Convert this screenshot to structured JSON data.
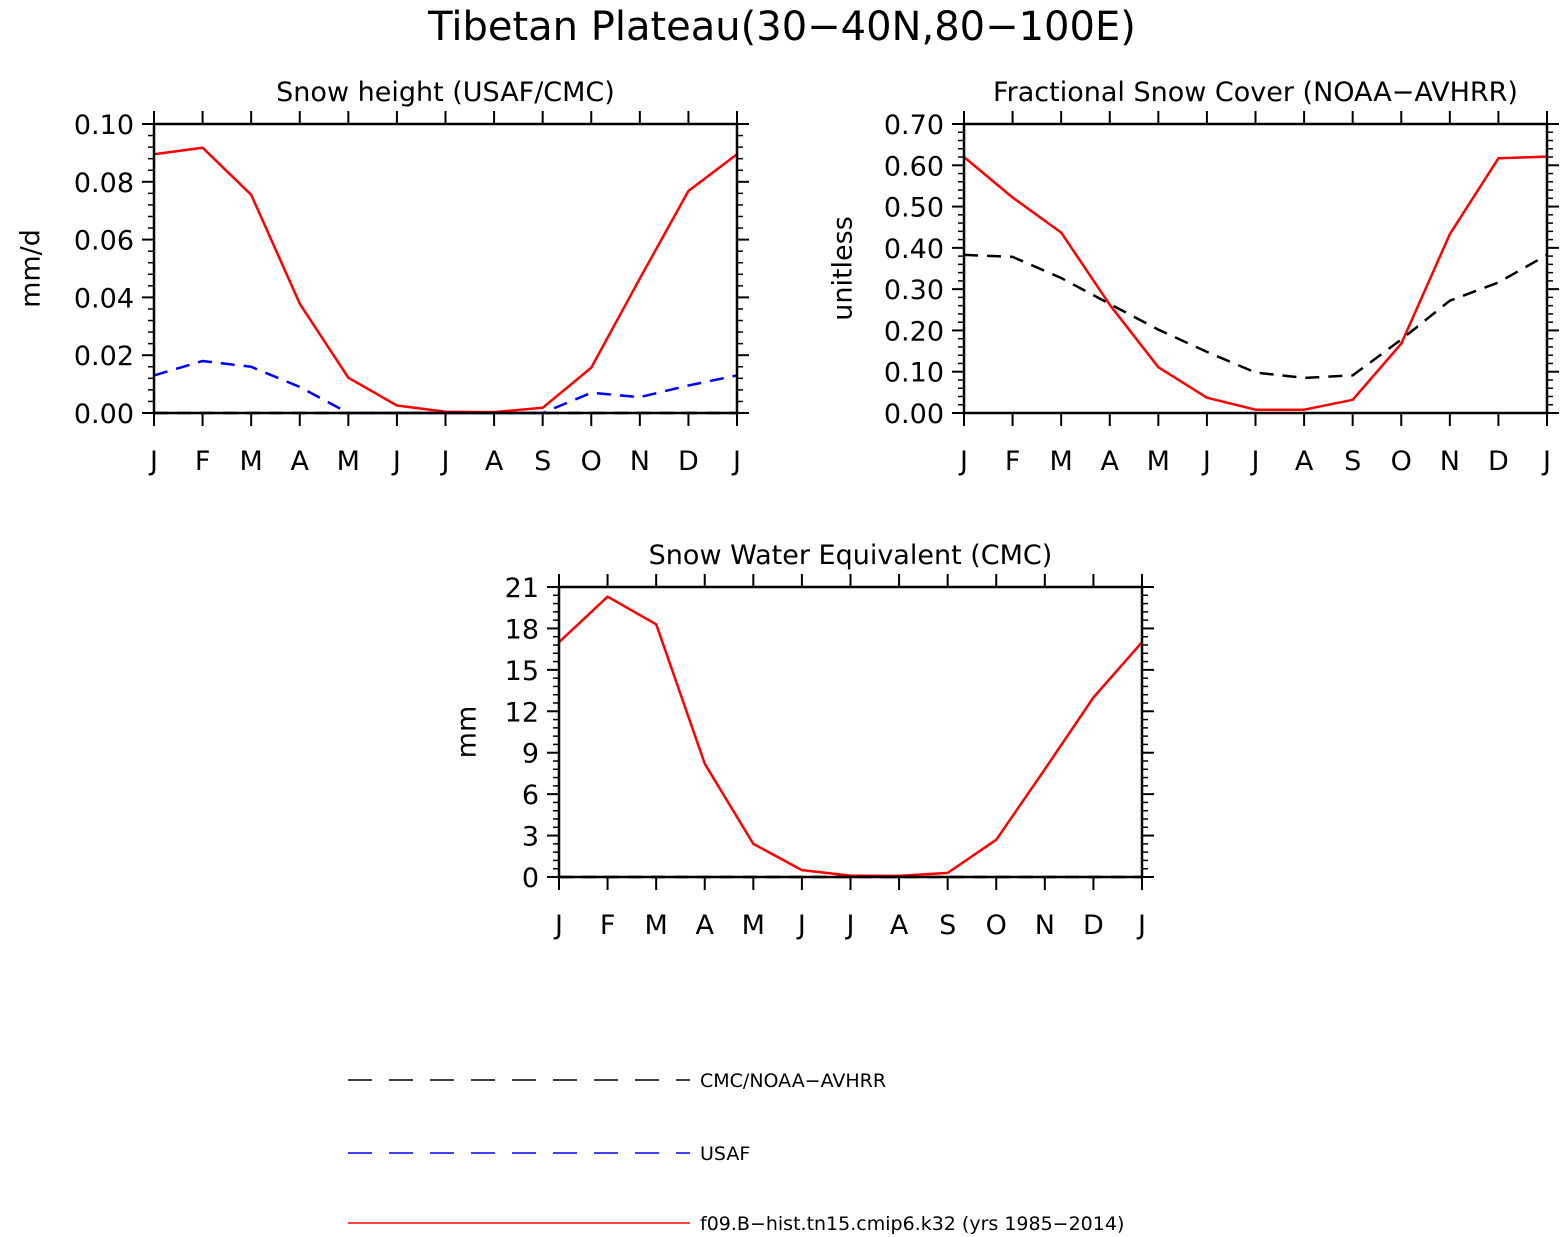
{
  "figure": {
    "title": "Tibetan Plateau(30−40N,80−100E)"
  },
  "chart_data": [
    {
      "type": "line",
      "title": "Snow height (USAF/CMC)",
      "xlabel": "",
      "ylabel": "mm/d",
      "categories": [
        "J",
        "F",
        "M",
        "A",
        "M",
        "J",
        "J",
        "A",
        "S",
        "O",
        "N",
        "D",
        "J"
      ],
      "ylim": [
        0,
        0.1
      ],
      "yticks": [
        "0.00",
        "0.02",
        "0.04",
        "0.06",
        "0.08",
        "0.10"
      ],
      "series": [
        {
          "name": "f09.B−hist.tn15.cmip6.k32 (yrs 1985−2014)",
          "color": "#ff0000",
          "dash": "solid",
          "values": [
            0.0895,
            0.0918,
            0.0755,
            0.0378,
            0.0122,
            0.0026,
            0.0004,
            0.0003,
            0.0018,
            0.0157,
            0.0465,
            0.0768,
            0.0895
          ]
        },
        {
          "name": "USAF",
          "color": "#0000ff",
          "dash": "dashed",
          "values": [
            0.013,
            0.018,
            0.016,
            0.009,
            0.0,
            0.0,
            0.0,
            0.0,
            0.0,
            0.007,
            0.0055,
            0.0095,
            0.013
          ]
        },
        {
          "name": "CMC/NOAA−AVHRR",
          "color": "#000000",
          "dash": "dashed",
          "values": [
            0,
            0,
            0,
            0,
            0,
            0,
            0,
            0,
            0,
            0,
            0,
            0,
            0
          ]
        }
      ]
    },
    {
      "type": "line",
      "title": "Fractional Snow Cover (NOAA−AVHRR)",
      "xlabel": "",
      "ylabel": "unitless",
      "categories": [
        "J",
        "F",
        "M",
        "A",
        "M",
        "J",
        "J",
        "A",
        "S",
        "O",
        "N",
        "D",
        "J"
      ],
      "ylim": [
        0,
        0.7
      ],
      "yticks": [
        "0.00",
        "0.10",
        "0.20",
        "0.30",
        "0.40",
        "0.50",
        "0.60",
        "0.70"
      ],
      "series": [
        {
          "name": "f09.B−hist.tn15.cmip6.k32 (yrs 1985−2014)",
          "color": "#ff0000",
          "dash": "solid",
          "values": [
            0.62,
            0.522,
            0.437,
            0.262,
            0.111,
            0.037,
            0.008,
            0.008,
            0.032,
            0.168,
            0.433,
            0.617,
            0.621
          ]
        },
        {
          "name": "CMC/NOAA−AVHRR",
          "color": "#000000",
          "dash": "dashed",
          "values": [
            0.383,
            0.378,
            0.327,
            0.264,
            0.202,
            0.148,
            0.098,
            0.085,
            0.091,
            0.178,
            0.272,
            0.316,
            0.383
          ]
        }
      ]
    },
    {
      "type": "line",
      "title": "Snow Water Equivalent (CMC)",
      "xlabel": "",
      "ylabel": "mm",
      "categories": [
        "J",
        "F",
        "M",
        "A",
        "M",
        "J",
        "J",
        "A",
        "S",
        "O",
        "N",
        "D",
        "J"
      ],
      "ylim": [
        0,
        21
      ],
      "yticks": [
        "0",
        "3",
        "6",
        "9",
        "12",
        "15",
        "18",
        "21"
      ],
      "series": [
        {
          "name": "f09.B−hist.tn15.cmip6.k32 (yrs 1985−2014)",
          "color": "#ff0000",
          "dash": "solid",
          "values": [
            17.0,
            20.3,
            18.3,
            8.2,
            2.4,
            0.5,
            0.1,
            0.08,
            0.3,
            2.7,
            7.8,
            13.0,
            17.0
          ]
        },
        {
          "name": "CMC/NOAA−AVHRR",
          "color": "#000000",
          "dash": "dashed",
          "values": [
            0,
            0,
            0,
            0,
            0,
            0,
            0,
            0,
            0,
            0,
            0,
            0,
            0
          ]
        }
      ]
    }
  ],
  "legend": [
    {
      "label": "CMC/NOAA−AVHRR",
      "color": "#000000",
      "dash": "dashed"
    },
    {
      "label": "USAF",
      "color": "#0000ff",
      "dash": "dashed"
    },
    {
      "label": "f09.B−hist.tn15.cmip6.k32 (yrs 1985−2014)",
      "color": "#ff0000",
      "dash": "solid"
    }
  ]
}
